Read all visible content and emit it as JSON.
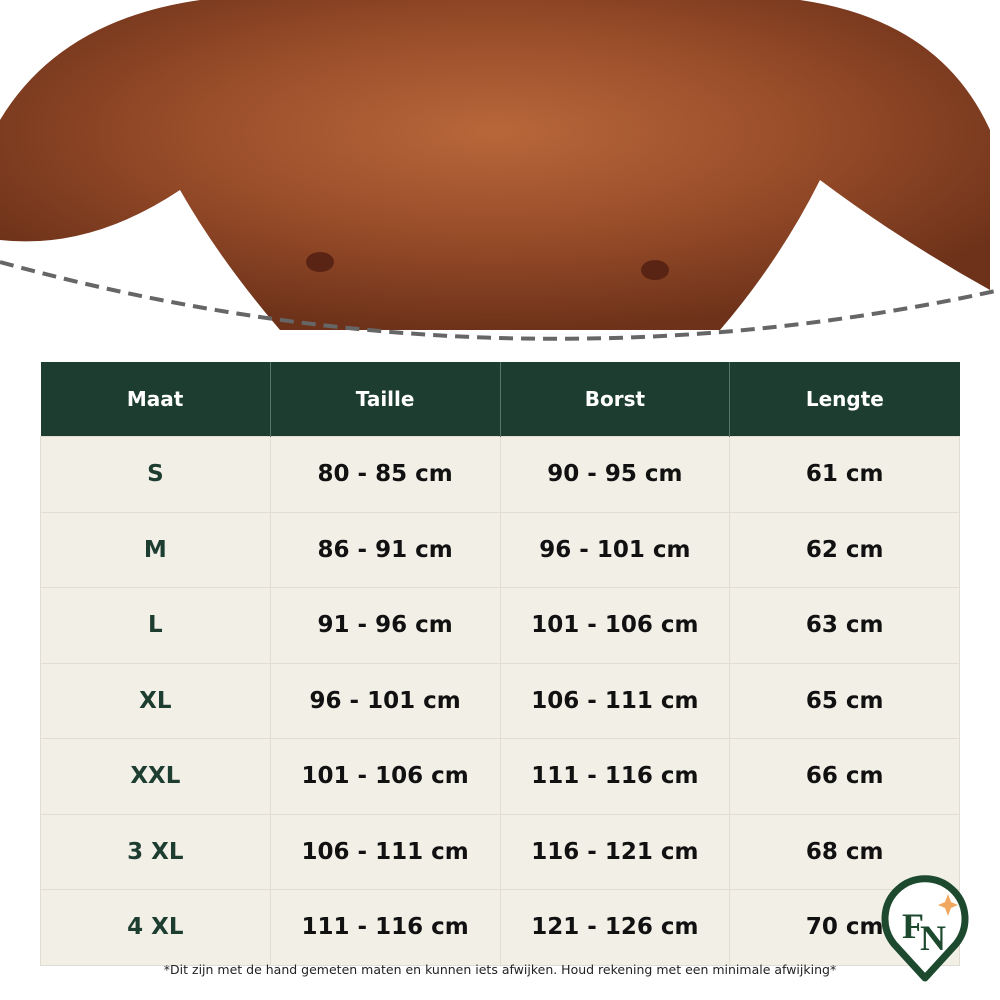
{
  "table": {
    "headers": [
      "Maat",
      "Taille",
      "Borst",
      "Lengte"
    ],
    "rows": [
      [
        "S",
        "80 - 85 cm",
        "90 - 95 cm",
        "61 cm"
      ],
      [
        "M",
        "86 - 91 cm",
        "96 - 101 cm",
        "62 cm"
      ],
      [
        "L",
        "91 - 96 cm",
        "101 - 106 cm",
        "63 cm"
      ],
      [
        "XL",
        "96 - 101 cm",
        "106 - 111 cm",
        "65 cm"
      ],
      [
        "XXL",
        "101 - 106 cm",
        "111 - 116 cm",
        "66 cm"
      ],
      [
        "3 XL",
        "106 - 111 cm",
        "116 - 121 cm",
        "68 cm"
      ],
      [
        "4 XL",
        "111 - 116 cm",
        "121 - 126 cm",
        "70 cm"
      ]
    ]
  },
  "footnote": "*Dit zijn met de hand gemeten maten en kunnen iets afwijken. Houd rekening met een minimale afwijking*",
  "logo": {
    "text": "FN",
    "color": "#1d4a2e",
    "accent": "#f0a860"
  },
  "colors": {
    "header": "#1d3d31",
    "row": "#f2efe7"
  }
}
